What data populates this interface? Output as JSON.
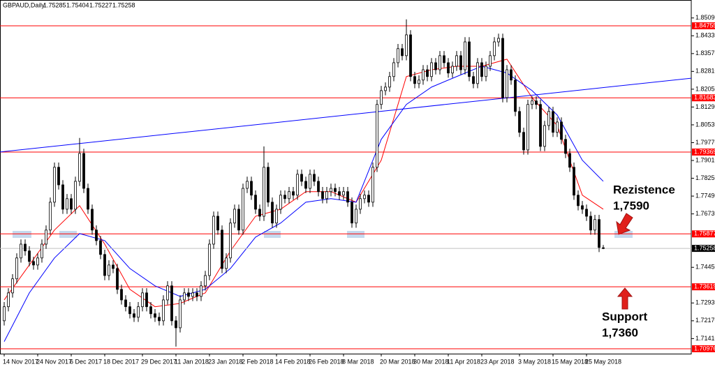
{
  "chart_data": {
    "type": "candlestick",
    "title": "GBPAUD,Daily",
    "categories": [
      "14 Nov 2017",
      null,
      null,
      null,
      null,
      null,
      null,
      null,
      "24 Nov 2017",
      null,
      null,
      null,
      null,
      null,
      null,
      null,
      "6 Dec 2017",
      null,
      null,
      null,
      null,
      null,
      null,
      null,
      "18 Dec 2017",
      null,
      null,
      null,
      null,
      null,
      null,
      null,
      null,
      "29 Dec 2017",
      null,
      null,
      null,
      null,
      null,
      null,
      null,
      "11 Jan 2018",
      null,
      null,
      null,
      null,
      null,
      null,
      null,
      "23 Jan 2018",
      null,
      null,
      null,
      null,
      null,
      null,
      null,
      "2 Feb 2018",
      null,
      null,
      null,
      null,
      null,
      null,
      null,
      "14 Feb 2018",
      null,
      null,
      null,
      null,
      null,
      null,
      null,
      "26 Feb 2018",
      null,
      null,
      null,
      null,
      null,
      null,
      null,
      "8 Mar 2018",
      null,
      null,
      null,
      null,
      null,
      null,
      null,
      null,
      "20 Mar 2018",
      null,
      null,
      null,
      null,
      null,
      null,
      null,
      "30 Mar 2018",
      null,
      null,
      null,
      null,
      null,
      null,
      null,
      "11 Apr 2018",
      null,
      null,
      null,
      null,
      null,
      null,
      null,
      "23 Apr 2018",
      null,
      null,
      null,
      null,
      null,
      null,
      null,
      null,
      "3 May 2018",
      null,
      null,
      null,
      null,
      null,
      null,
      null,
      "15 May 2018",
      null,
      null,
      null,
      null,
      null,
      null,
      null,
      "25 May 2018",
      null,
      null,
      null,
      null
    ],
    "open": [
      1.7217,
      1.7277,
      1.7336,
      1.7396,
      1.7485,
      1.7544,
      1.7515,
      1.747,
      1.7455,
      1.7485,
      1.7544,
      1.7604,
      1.7723,
      1.7872,
      1.7797,
      1.7693,
      1.7738,
      1.7693,
      1.7812,
      1.7931,
      1.7782,
      1.7693,
      1.7604,
      1.7559,
      1.75,
      1.741,
      1.7455,
      1.744,
      1.7351,
      1.7306,
      1.7277,
      1.7247,
      1.7232,
      1.7277,
      1.7336,
      1.7277,
      1.7247,
      1.7232,
      1.7217,
      1.7306,
      1.7366,
      1.7217,
      1.7187,
      1.7306,
      1.7336,
      1.7321,
      1.7336,
      1.7321,
      1.7366,
      1.741,
      1.7544,
      1.7663,
      1.7604,
      1.744,
      1.7485,
      1.7634,
      1.7693,
      1.7604,
      1.7782,
      1.7812,
      1.7753,
      1.7693,
      1.7663,
      1.7872,
      1.7723,
      1.7634,
      1.7693,
      1.7753,
      1.7738,
      1.7768,
      1.7753,
      1.7842,
      1.7812,
      1.7782,
      1.7842,
      1.7812,
      1.7768,
      1.7738,
      1.7768,
      1.7782,
      1.7768,
      1.7753,
      1.7768,
      1.7723,
      1.7634,
      1.7693,
      1.7738,
      1.7753,
      1.7723,
      1.7872,
      1.814,
      1.8199,
      1.8214,
      1.8259,
      1.8318,
      1.8378,
      1.8348,
      1.8437,
      1.8259,
      1.8229,
      1.8244,
      1.8288,
      1.8259,
      1.8318,
      1.8288,
      1.8348,
      1.8318,
      1.8274,
      1.8303,
      1.8348,
      1.8288,
      1.8407,
      1.8259,
      1.8229,
      1.8318,
      1.8259,
      1.8303,
      1.8348,
      1.8407,
      1.8422,
      1.8169,
      1.8288,
      1.8244,
      1.811,
      1.8021,
      1.7946,
      1.814,
      1.8155,
      1.814,
      1.7961,
      1.805,
      1.811,
      1.8021,
      1.8065,
      1.7991,
      1.7931,
      1.7872,
      1.7753,
      1.7708,
      1.7693,
      1.7663,
      1.7604,
      1.7649,
      1.75285
    ],
    "high": [
      1.7297,
      1.7356,
      1.7416,
      1.7505,
      1.7564,
      1.7564,
      1.7535,
      1.749,
      1.7505,
      1.7564,
      1.7624,
      1.7743,
      1.7892,
      1.7892,
      1.7817,
      1.7758,
      1.7758,
      1.7832,
      1.7997,
      1.7951,
      1.7802,
      1.7713,
      1.7624,
      1.7579,
      1.752,
      1.7475,
      1.7475,
      1.746,
      1.7371,
      1.7326,
      1.7297,
      1.7267,
      1.7297,
      1.7356,
      1.7356,
      1.7297,
      1.7267,
      1.7252,
      1.7326,
      1.7386,
      1.7386,
      1.7237,
      1.7326,
      1.7356,
      1.7356,
      1.7356,
      1.7356,
      1.7386,
      1.743,
      1.7564,
      1.7683,
      1.7683,
      1.7624,
      1.7505,
      1.7654,
      1.7713,
      1.7713,
      1.7802,
      1.7832,
      1.7832,
      1.7773,
      1.7713,
      1.7961,
      1.7892,
      1.7743,
      1.7713,
      1.7773,
      1.7773,
      1.7788,
      1.7788,
      1.7862,
      1.7862,
      1.7832,
      1.7862,
      1.7862,
      1.7832,
      1.7788,
      1.7788,
      1.7802,
      1.7802,
      1.7788,
      1.7788,
      1.7788,
      1.7743,
      1.7713,
      1.7758,
      1.7773,
      1.7773,
      1.7892,
      1.816,
      1.8219,
      1.8234,
      1.8279,
      1.8338,
      1.8398,
      1.8398,
      1.8503,
      1.8457,
      1.8279,
      1.8264,
      1.8308,
      1.8308,
      1.8338,
      1.8338,
      1.8368,
      1.8368,
      1.8338,
      1.8323,
      1.8368,
      1.8368,
      1.8427,
      1.8427,
      1.8279,
      1.8338,
      1.8338,
      1.8323,
      1.8368,
      1.8427,
      1.8442,
      1.8442,
      1.8308,
      1.8308,
      1.8264,
      1.813,
      1.8041,
      1.816,
      1.8175,
      1.8175,
      1.816,
      1.807,
      1.813,
      1.813,
      1.8085,
      1.8085,
      1.8011,
      1.7951,
      1.7892,
      1.7773,
      1.7728,
      1.7713,
      1.7683,
      1.7669,
      1.7669,
      1.75404
    ],
    "low": [
      1.7197,
      1.7257,
      1.7316,
      1.7376,
      1.7465,
      1.7495,
      1.745,
      1.7435,
      1.7435,
      1.7465,
      1.7524,
      1.7584,
      1.7703,
      1.7777,
      1.7673,
      1.7673,
      1.7673,
      1.7673,
      1.7792,
      1.7762,
      1.7673,
      1.7584,
      1.7539,
      1.748,
      1.739,
      1.739,
      1.742,
      1.7331,
      1.7286,
      1.7257,
      1.7227,
      1.7212,
      1.7212,
      1.7257,
      1.7257,
      1.7227,
      1.7212,
      1.7197,
      1.7197,
      1.7286,
      1.7197,
      1.7107,
      1.7167,
      1.7286,
      1.7301,
      1.7301,
      1.7301,
      1.7301,
      1.7346,
      1.739,
      1.7524,
      1.7584,
      1.742,
      1.742,
      1.7465,
      1.7614,
      1.7584,
      1.7584,
      1.7762,
      1.7733,
      1.7673,
      1.7643,
      1.7643,
      1.7703,
      1.7614,
      1.7614,
      1.7673,
      1.7718,
      1.7718,
      1.7733,
      1.7733,
      1.7792,
      1.7762,
      1.7762,
      1.7792,
      1.7748,
      1.7718,
      1.7718,
      1.7748,
      1.7748,
      1.7733,
      1.7733,
      1.7703,
      1.7614,
      1.7614,
      1.7673,
      1.7718,
      1.7703,
      1.7703,
      1.7852,
      1.812,
      1.8179,
      1.8194,
      1.8239,
      1.8298,
      1.8328,
      1.8328,
      1.8239,
      1.8209,
      1.8209,
      1.8224,
      1.8239,
      1.8239,
      1.8268,
      1.8268,
      1.8298,
      1.8254,
      1.8254,
      1.8283,
      1.8268,
      1.8268,
      1.8239,
      1.8209,
      1.8209,
      1.8239,
      1.8239,
      1.8283,
      1.8328,
      1.8387,
      1.8149,
      1.8149,
      1.8224,
      1.809,
      1.8001,
      1.7926,
      1.7926,
      1.812,
      1.812,
      1.7941,
      1.7941,
      1.803,
      1.8001,
      1.8001,
      1.7971,
      1.7911,
      1.7852,
      1.7733,
      1.7688,
      1.7673,
      1.7643,
      1.7584,
      1.7584,
      1.751,
      1.75227
    ],
    "close": [
      1.7277,
      1.7336,
      1.7396,
      1.7485,
      1.7544,
      1.7515,
      1.747,
      1.7455,
      1.7485,
      1.7544,
      1.7604,
      1.7723,
      1.7872,
      1.7797,
      1.7693,
      1.7738,
      1.7693,
      1.7812,
      1.7931,
      1.7782,
      1.7693,
      1.7604,
      1.7559,
      1.75,
      1.741,
      1.7455,
      1.744,
      1.7351,
      1.7306,
      1.7277,
      1.7247,
      1.7232,
      1.7277,
      1.7336,
      1.7277,
      1.7247,
      1.7232,
      1.7217,
      1.7306,
      1.7366,
      1.7217,
      1.7187,
      1.7306,
      1.7336,
      1.7321,
      1.7336,
      1.7321,
      1.7366,
      1.741,
      1.7544,
      1.7663,
      1.7604,
      1.744,
      1.7485,
      1.7634,
      1.7693,
      1.7604,
      1.7782,
      1.7812,
      1.7753,
      1.7693,
      1.7663,
      1.7872,
      1.7723,
      1.7634,
      1.7693,
      1.7753,
      1.7738,
      1.7768,
      1.7753,
      1.7842,
      1.7812,
      1.7782,
      1.7842,
      1.7812,
      1.7768,
      1.7738,
      1.7768,
      1.7782,
      1.7768,
      1.7753,
      1.7768,
      1.7723,
      1.7634,
      1.7693,
      1.7738,
      1.7753,
      1.7723,
      1.7872,
      1.814,
      1.8199,
      1.8214,
      1.8259,
      1.8318,
      1.8378,
      1.8348,
      1.8437,
      1.8259,
      1.8229,
      1.8244,
      1.8288,
      1.8259,
      1.8318,
      1.8288,
      1.8348,
      1.8318,
      1.8274,
      1.8303,
      1.8348,
      1.8288,
      1.8407,
      1.8259,
      1.8229,
      1.8318,
      1.8259,
      1.8303,
      1.8348,
      1.8407,
      1.8422,
      1.8169,
      1.8288,
      1.8244,
      1.811,
      1.8021,
      1.7946,
      1.814,
      1.8155,
      1.814,
      1.7961,
      1.805,
      1.811,
      1.8021,
      1.8065,
      1.7991,
      1.7931,
      1.7872,
      1.7753,
      1.7708,
      1.7693,
      1.7663,
      1.7604,
      1.7649,
      1.753,
      1.75258
    ],
    "up_color": "#ffffff",
    "down_color": "#000000",
    "ylim": [
      1.70767,
      1.85856
    ],
    "yticks": [
      {
        "value": 1.8509,
        "label": "1.85090"
      },
      {
        "value": 1.8433,
        "label": "1.84330"
      },
      {
        "value": 1.8357,
        "label": "1.83570"
      },
      {
        "value": 1.8281,
        "label": "1.82810"
      },
      {
        "value": 1.8205,
        "label": "1.82050"
      },
      {
        "value": 1.8129,
        "label": "1.81290"
      },
      {
        "value": 1.8053,
        "label": "1.80530"
      },
      {
        "value": 1.7977,
        "label": "1.79770"
      },
      {
        "value": 1.7901,
        "label": "1.79010"
      },
      {
        "value": 1.7825,
        "label": "1.78250"
      },
      {
        "value": 1.7749,
        "label": "1.77490"
      },
      {
        "value": 1.7673,
        "label": "1.76730"
      },
      {
        "value": 1.7445,
        "label": "1.74450"
      },
      {
        "value": 1.7293,
        "label": "1.72930"
      },
      {
        "value": 1.7217,
        "label": "1.72170"
      },
      {
        "value": 1.7141,
        "label": "1.71410"
      }
    ],
    "grid": false,
    "levels": [
      1.84755,
      1.81683,
      1.79369,
      1.75877,
      1.73619,
      1.70976
    ],
    "level_color": "#ff0000",
    "lines": [
      {
        "color": "#ff0000",
        "x": [
          0,
          6,
          12,
          18,
          24,
          30,
          36,
          42,
          48,
          54,
          60,
          66,
          72,
          78,
          84,
          90,
          96,
          102,
          108,
          114,
          120,
          126,
          132,
          138,
          143
        ],
        "values": [
          1.7306,
          1.7455,
          1.7604,
          1.7708,
          1.7544,
          1.7351,
          1.7277,
          1.7291,
          1.7336,
          1.7515,
          1.7663,
          1.7693,
          1.7768,
          1.7768,
          1.7723,
          1.7902,
          1.8259,
          1.8288,
          1.8303,
          1.8303,
          1.8333,
          1.8169,
          1.805,
          1.7753,
          1.7693
        ]
      },
      {
        "color": "#0000ff",
        "x": [
          0,
          6,
          12,
          18,
          24,
          30,
          36,
          42,
          48,
          54,
          60,
          66,
          72,
          78,
          84,
          90,
          96,
          102,
          108,
          114,
          120,
          126,
          132,
          138,
          143
        ],
        "values": [
          1.7128,
          1.7336,
          1.7485,
          1.7589,
          1.7559,
          1.744,
          1.7366,
          1.7321,
          1.7351,
          1.744,
          1.7574,
          1.7634,
          1.7723,
          1.7738,
          1.7723,
          1.7991,
          1.814,
          1.8214,
          1.8259,
          1.8303,
          1.8274,
          1.8199,
          1.8095,
          1.7902,
          1.7812
        ]
      },
      {
        "color": "#0000ff",
        "x": [
          -1,
          164
        ],
        "values": [
          1.7937,
          1.8252
        ]
      }
    ],
    "annotations": [
      [
        "Rezistence",
        "1,7590"
      ],
      [
        "Support",
        "1,7360"
      ]
    ]
  }
}
